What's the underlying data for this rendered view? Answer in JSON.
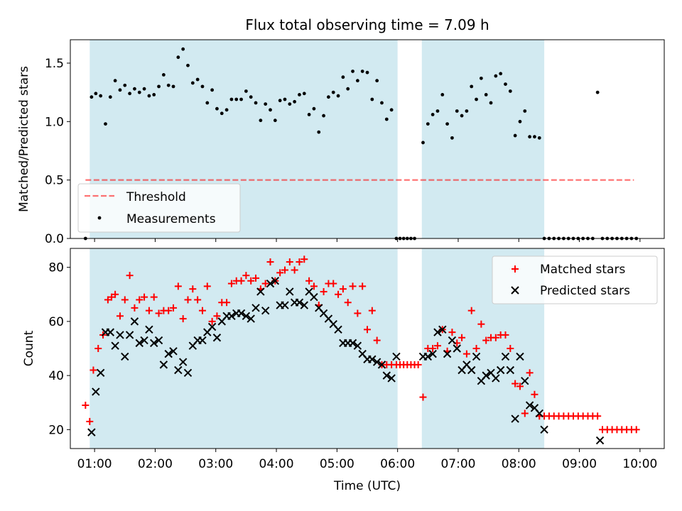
{
  "figure": {
    "title": "Flux total observing time = 7.09 h",
    "xlabel": "Time (UTC)"
  },
  "colors": {
    "observing_window": "#add8e6",
    "threshold": "#ff0000",
    "measurements": "#000000",
    "matched": "#ff0000",
    "predicted": "#000000"
  },
  "chart_data": [
    {
      "type": "scatter",
      "ylabel": "Matched/Predicted stars",
      "xlim": [
        0.6,
        10.4
      ],
      "ylim": [
        0,
        1.7
      ],
      "yticks": [
        0.0,
        0.5,
        1.0,
        1.5
      ],
      "ytick_labels": [
        "0.0",
        "0.5",
        "1.0",
        "1.5"
      ],
      "legend_location": "lower-left",
      "observing_windows": [
        [
          0.92,
          6.0
        ],
        [
          6.4,
          8.42
        ]
      ],
      "threshold": {
        "name": "Threshold",
        "value": 0.5,
        "x_range": [
          0.85,
          9.9
        ],
        "style": "dashed"
      },
      "series": [
        {
          "name": "Measurements",
          "x": [
            0.85,
            0.95,
            1.02,
            1.1,
            1.18,
            1.26,
            1.34,
            1.42,
            1.5,
            1.58,
            1.66,
            1.74,
            1.82,
            1.9,
            1.98,
            2.06,
            2.14,
            2.22,
            2.3,
            2.38,
            2.46,
            2.54,
            2.62,
            2.7,
            2.78,
            2.86,
            2.94,
            3.02,
            3.1,
            3.18,
            3.26,
            3.34,
            3.42,
            3.5,
            3.58,
            3.66,
            3.74,
            3.82,
            3.9,
            3.98,
            4.06,
            4.14,
            4.22,
            4.3,
            4.38,
            4.46,
            4.54,
            4.62,
            4.7,
            4.78,
            4.86,
            4.94,
            5.02,
            5.1,
            5.18,
            5.26,
            5.34,
            5.42,
            5.5,
            5.58,
            5.66,
            5.74,
            5.82,
            5.9,
            5.98,
            6.04,
            6.1,
            6.16,
            6.22,
            6.28,
            6.42,
            6.5,
            6.58,
            6.66,
            6.74,
            6.82,
            6.9,
            6.98,
            7.06,
            7.14,
            7.22,
            7.3,
            7.38,
            7.46,
            7.54,
            7.62,
            7.7,
            7.78,
            7.86,
            7.94,
            8.02,
            8.1,
            8.18,
            8.26,
            8.34,
            8.42,
            8.5,
            8.58,
            8.66,
            8.74,
            8.82,
            8.9,
            8.98,
            9.06,
            9.14,
            9.22,
            9.3,
            9.38,
            9.46,
            9.54,
            9.62,
            9.7,
            9.78,
            9.86,
            9.94
          ],
          "y": [
            0.0,
            1.21,
            1.24,
            1.22,
            0.98,
            1.21,
            1.35,
            1.27,
            1.31,
            1.24,
            1.28,
            1.25,
            1.28,
            1.22,
            1.23,
            1.3,
            1.4,
            1.31,
            1.3,
            1.55,
            1.62,
            1.48,
            1.33,
            1.36,
            1.3,
            1.16,
            1.27,
            1.11,
            1.07,
            1.1,
            1.19,
            1.19,
            1.19,
            1.26,
            1.21,
            1.16,
            1.01,
            1.15,
            1.1,
            1.01,
            1.18,
            1.19,
            1.15,
            1.17,
            1.23,
            1.24,
            1.06,
            1.11,
            0.91,
            1.05,
            1.21,
            1.25,
            1.22,
            1.38,
            1.28,
            1.43,
            1.35,
            1.43,
            1.42,
            1.19,
            1.35,
            1.16,
            1.02,
            1.1,
            0.0,
            0.0,
            0.0,
            0.0,
            0.0,
            0.0,
            0.82,
            0.98,
            1.06,
            1.09,
            1.23,
            0.98,
            0.86,
            1.09,
            1.05,
            1.09,
            1.3,
            1.19,
            1.37,
            1.23,
            1.16,
            1.39,
            1.41,
            1.32,
            1.26,
            0.88,
            1.0,
            1.09,
            0.87,
            0.87,
            0.86,
            0.0,
            0.0,
            0.0,
            0.0,
            0.0,
            0.0,
            0.0,
            0.0,
            0.0,
            0.0,
            0.0,
            1.25,
            0.0,
            0.0,
            0.0,
            0.0,
            0.0,
            0.0,
            0.0,
            0.0
          ]
        }
      ]
    },
    {
      "type": "scatter",
      "ylabel": "Count",
      "xlim": [
        0.6,
        10.4
      ],
      "ylim": [
        13,
        87
      ],
      "yticks": [
        20,
        40,
        60,
        80
      ],
      "ytick_labels": [
        "20",
        "40",
        "60",
        "80"
      ],
      "xticks": [
        1,
        2,
        3,
        4,
        5,
        6,
        7,
        8,
        9,
        10
      ],
      "xtick_labels": [
        "01:00",
        "02:00",
        "03:00",
        "04:00",
        "05:00",
        "06:00",
        "07:00",
        "08:00",
        "09:00",
        "10:00"
      ],
      "legend_location": "upper-right",
      "observing_windows": [
        [
          0.92,
          6.0
        ],
        [
          6.4,
          8.42
        ]
      ],
      "series": [
        {
          "name": "Matched stars",
          "marker": "plus",
          "x": [
            0.85,
            0.92,
            0.98,
            1.06,
            1.14,
            1.22,
            1.28,
            1.34,
            1.42,
            1.5,
            1.58,
            1.66,
            1.74,
            1.82,
            1.9,
            1.98,
            2.06,
            2.14,
            2.22,
            2.3,
            2.38,
            2.46,
            2.54,
            2.62,
            2.7,
            2.78,
            2.86,
            2.94,
            3.02,
            3.1,
            3.18,
            3.26,
            3.34,
            3.42,
            3.5,
            3.58,
            3.66,
            3.74,
            3.82,
            3.9,
            3.98,
            4.06,
            4.14,
            4.22,
            4.3,
            4.38,
            4.46,
            4.54,
            4.62,
            4.7,
            4.78,
            4.86,
            4.94,
            5.02,
            5.1,
            5.18,
            5.26,
            5.34,
            5.42,
            5.5,
            5.58,
            5.66,
            5.74,
            5.82,
            5.9,
            5.98,
            6.04,
            6.1,
            6.16,
            6.22,
            6.28,
            6.34,
            6.42,
            6.5,
            6.58,
            6.66,
            6.74,
            6.82,
            6.9,
            6.98,
            7.06,
            7.14,
            7.22,
            7.3,
            7.38,
            7.46,
            7.54,
            7.62,
            7.7,
            7.78,
            7.86,
            7.94,
            8.02,
            8.1,
            8.18,
            8.26,
            8.34,
            8.42,
            8.5,
            8.58,
            8.66,
            8.74,
            8.82,
            8.9,
            8.98,
            9.06,
            9.14,
            9.22,
            9.3,
            9.38,
            9.46,
            9.54,
            9.62,
            9.7,
            9.78,
            9.86,
            9.94
          ],
          "y": [
            29,
            23,
            42,
            50,
            55,
            68,
            69,
            70,
            62,
            68,
            77,
            65,
            68,
            69,
            64,
            69,
            63,
            64,
            64,
            65,
            73,
            61,
            68,
            72,
            68,
            64,
            73,
            60,
            62,
            67,
            67,
            74,
            75,
            75,
            77,
            75,
            76,
            72,
            74,
            82,
            75,
            78,
            79,
            82,
            79,
            82,
            83,
            75,
            73,
            66,
            71,
            74,
            74,
            70,
            72,
            67,
            73,
            63,
            73,
            57,
            64,
            53,
            44,
            44,
            44,
            44,
            44,
            44,
            44,
            44,
            44,
            44,
            32,
            50,
            50,
            51,
            57,
            49,
            56,
            52,
            54,
            48,
            64,
            50,
            59,
            53,
            54,
            54,
            55,
            55,
            50,
            37,
            36,
            26,
            41,
            33,
            25,
            25,
            25,
            25,
            25,
            25,
            25,
            25,
            25,
            25,
            25,
            25,
            25,
            20,
            20,
            20,
            20,
            20,
            20,
            20,
            20
          ]
        },
        {
          "name": "Predicted stars",
          "marker": "x",
          "x": [
            0.95,
            1.02,
            1.1,
            1.18,
            1.26,
            1.34,
            1.42,
            1.5,
            1.58,
            1.66,
            1.74,
            1.82,
            1.9,
            1.98,
            2.06,
            2.14,
            2.22,
            2.3,
            2.38,
            2.46,
            2.54,
            2.62,
            2.7,
            2.78,
            2.86,
            2.94,
            3.02,
            3.1,
            3.18,
            3.26,
            3.34,
            3.42,
            3.5,
            3.58,
            3.66,
            3.74,
            3.82,
            3.9,
            3.98,
            4.06,
            4.14,
            4.22,
            4.3,
            4.38,
            4.46,
            4.54,
            4.62,
            4.7,
            4.78,
            4.86,
            4.94,
            5.02,
            5.1,
            5.18,
            5.26,
            5.34,
            5.42,
            5.5,
            5.58,
            5.66,
            5.74,
            5.82,
            5.9,
            5.98,
            6.42,
            6.5,
            6.58,
            6.66,
            6.74,
            6.82,
            6.9,
            6.98,
            7.06,
            7.14,
            7.22,
            7.3,
            7.38,
            7.46,
            7.54,
            7.62,
            7.7,
            7.78,
            7.86,
            7.94,
            8.02,
            8.1,
            8.18,
            8.26,
            8.34,
            8.42,
            9.34
          ],
          "y": [
            19,
            34,
            41,
            56,
            56,
            51,
            55,
            47,
            55,
            60,
            52,
            53,
            57,
            52,
            53,
            44,
            48,
            49,
            42,
            45,
            41,
            51,
            53,
            53,
            56,
            58,
            54,
            60,
            62,
            62,
            63,
            63,
            62,
            61,
            65,
            71,
            64,
            74,
            75,
            66,
            66,
            71,
            67,
            67,
            66,
            71,
            69,
            65,
            63,
            61,
            59,
            57,
            52,
            52,
            52,
            51,
            48,
            46,
            46,
            45,
            44,
            40,
            39,
            47,
            47,
            47,
            48,
            56,
            57,
            48,
            53,
            50,
            42,
            44,
            42,
            47,
            38,
            40,
            41,
            39,
            42,
            47,
            42,
            24,
            47,
            38,
            29,
            28,
            26,
            20,
            16
          ]
        }
      ]
    }
  ]
}
